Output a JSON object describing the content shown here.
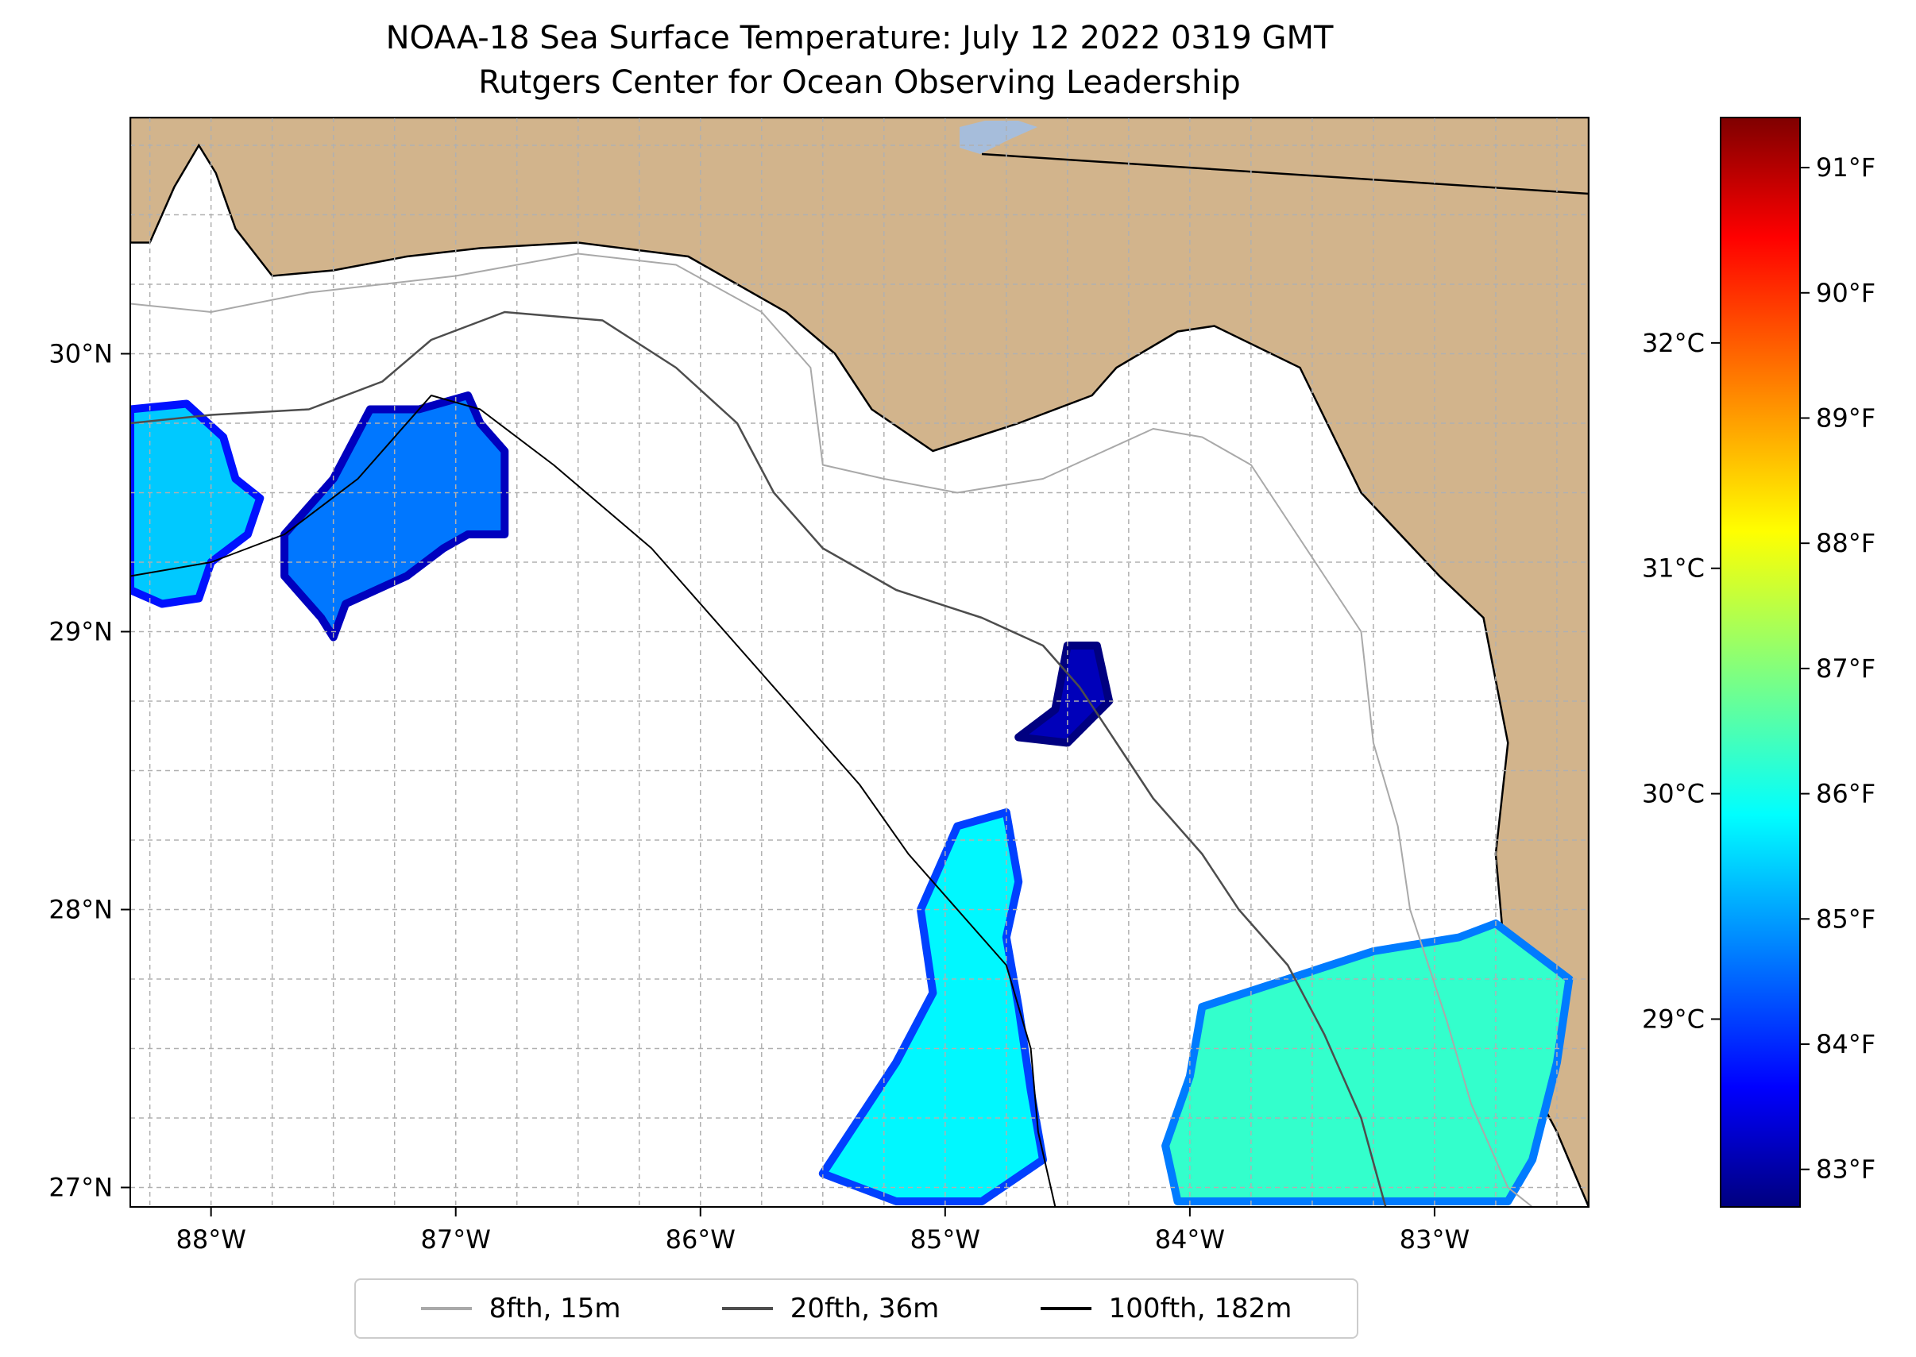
{
  "title_line1": "NOAA-18 Sea Surface Temperature: July 12 2022 0319 GMT",
  "title_line2": "Rutgers Center for Ocean Observing Leadership",
  "colors": {
    "land": "#d2b48c",
    "ocean": "#ffffff",
    "lake": "#a6bddb",
    "coastline": "#000000",
    "grid": "#b0b0b0",
    "isobath_8": "#a9a9a9",
    "isobath_20": "#4d4d4d",
    "isobath_100": "#000000"
  },
  "map": {
    "lon_range": [
      -88.33,
      -82.37
    ],
    "lat_range": [
      26.93,
      30.85
    ],
    "lon_ticks": [
      {
        "value": -88,
        "label": "88°W"
      },
      {
        "value": -87,
        "label": "87°W"
      },
      {
        "value": -86,
        "label": "86°W"
      },
      {
        "value": -85,
        "label": "85°W"
      },
      {
        "value": -84,
        "label": "84°W"
      },
      {
        "value": -83,
        "label": "83°W"
      }
    ],
    "lat_ticks": [
      {
        "value": 27,
        "label": "27°N"
      },
      {
        "value": 28,
        "label": "28°N"
      },
      {
        "value": 29,
        "label": "29°N"
      },
      {
        "value": 30,
        "label": "30°N"
      }
    ],
    "grid_step_deg": 0.25
  },
  "colorbar": {
    "colormap": "jet",
    "value_range_f": [
      82.7,
      91.4
    ],
    "ticks_f": [
      {
        "value": 83,
        "label": "83°F"
      },
      {
        "value": 84,
        "label": "84°F"
      },
      {
        "value": 85,
        "label": "85°F"
      },
      {
        "value": 86,
        "label": "86°F"
      },
      {
        "value": 87,
        "label": "87°F"
      },
      {
        "value": 88,
        "label": "88°F"
      },
      {
        "value": 89,
        "label": "89°F"
      },
      {
        "value": 90,
        "label": "90°F"
      },
      {
        "value": 91,
        "label": "91°F"
      }
    ],
    "ticks_c": [
      {
        "value": 29,
        "label": "29°C"
      },
      {
        "value": 30,
        "label": "30°C"
      },
      {
        "value": 31,
        "label": "31°C"
      },
      {
        "value": 32,
        "label": "32°C"
      }
    ]
  },
  "legend": [
    {
      "label": "8fth, 15m",
      "color": "#a9a9a9"
    },
    {
      "label": "20fth, 36m",
      "color": "#4d4d4d"
    },
    {
      "label": "100fth, 182m",
      "color": "#000000"
    }
  ],
  "sst_patches": [
    {
      "name": "sst-patch-west",
      "lonlat": [
        [
          -88.33,
          29.8
        ],
        [
          -88.1,
          29.82
        ],
        [
          -87.95,
          29.7
        ],
        [
          -87.9,
          29.55
        ],
        [
          -87.8,
          29.48
        ],
        [
          -87.85,
          29.35
        ],
        [
          -88.0,
          29.25
        ],
        [
          -88.05,
          29.12
        ],
        [
          -88.2,
          29.1
        ],
        [
          -88.33,
          29.15
        ]
      ],
      "temp_f": 85.5
    },
    {
      "name": "sst-patch-central-west",
      "lonlat": [
        [
          -87.35,
          29.8
        ],
        [
          -87.15,
          29.8
        ],
        [
          -86.95,
          29.85
        ],
        [
          -86.9,
          29.75
        ],
        [
          -86.8,
          29.65
        ],
        [
          -86.8,
          29.35
        ],
        [
          -86.95,
          29.35
        ],
        [
          -87.05,
          29.3
        ],
        [
          -87.2,
          29.2
        ],
        [
          -87.45,
          29.1
        ],
        [
          -87.5,
          28.98
        ],
        [
          -87.55,
          29.05
        ],
        [
          -87.7,
          29.2
        ],
        [
          -87.7,
          29.35
        ],
        [
          -87.5,
          29.55
        ]
      ],
      "temp_f": 84.8
    },
    {
      "name": "sst-patch-big-bend",
      "lonlat": [
        [
          -84.5,
          28.95
        ],
        [
          -84.38,
          28.95
        ],
        [
          -84.33,
          28.75
        ],
        [
          -84.5,
          28.6
        ],
        [
          -84.7,
          28.62
        ],
        [
          -84.55,
          28.72
        ]
      ],
      "temp_f": 83.2
    },
    {
      "name": "sst-patch-south-central",
      "lonlat": [
        [
          -84.95,
          28.3
        ],
        [
          -84.75,
          28.35
        ],
        [
          -84.7,
          28.1
        ],
        [
          -84.75,
          27.9
        ],
        [
          -84.7,
          27.65
        ],
        [
          -84.65,
          27.35
        ],
        [
          -84.6,
          27.1
        ],
        [
          -84.85,
          26.95
        ],
        [
          -85.2,
          26.95
        ],
        [
          -85.5,
          27.05
        ],
        [
          -85.35,
          27.25
        ],
        [
          -85.2,
          27.45
        ],
        [
          -85.05,
          27.7
        ],
        [
          -85.1,
          28.0
        ]
      ],
      "temp_f": 85.9
    },
    {
      "name": "sst-patch-southeast",
      "lonlat": [
        [
          -83.95,
          27.65
        ],
        [
          -83.6,
          27.75
        ],
        [
          -83.25,
          27.85
        ],
        [
          -82.9,
          27.9
        ],
        [
          -82.75,
          27.95
        ],
        [
          -82.45,
          27.75
        ],
        [
          -82.5,
          27.45
        ],
        [
          -82.6,
          27.1
        ],
        [
          -82.7,
          26.95
        ],
        [
          -83.2,
          26.95
        ],
        [
          -83.7,
          26.95
        ],
        [
          -84.05,
          26.95
        ],
        [
          -84.1,
          27.15
        ],
        [
          -84.0,
          27.4
        ]
      ],
      "temp_f": 86.4
    }
  ],
  "land_polygon": [
    [
      -88.33,
      30.85
    ],
    [
      -82.37,
      30.85
    ],
    [
      -82.37,
      26.93
    ],
    [
      -82.5,
      27.2
    ],
    [
      -82.65,
      27.45
    ],
    [
      -82.72,
      27.9
    ],
    [
      -82.75,
      28.2
    ],
    [
      -82.7,
      28.6
    ],
    [
      -82.8,
      29.05
    ],
    [
      -82.98,
      29.2
    ],
    [
      -83.3,
      29.5
    ],
    [
      -83.55,
      29.95
    ],
    [
      -83.9,
      30.1
    ],
    [
      -84.05,
      30.08
    ],
    [
      -84.3,
      29.95
    ],
    [
      -84.4,
      29.85
    ],
    [
      -84.7,
      29.75
    ],
    [
      -85.05,
      29.65
    ],
    [
      -85.3,
      29.8
    ],
    [
      -85.45,
      30.0
    ],
    [
      -85.65,
      30.15
    ],
    [
      -86.05,
      30.35
    ],
    [
      -86.5,
      30.4
    ],
    [
      -86.9,
      30.38
    ],
    [
      -87.2,
      30.35
    ],
    [
      -87.5,
      30.3
    ],
    [
      -87.75,
      30.28
    ],
    [
      -87.9,
      30.45
    ],
    [
      -87.98,
      30.65
    ],
    [
      -88.05,
      30.75
    ],
    [
      -88.15,
      30.6
    ],
    [
      -88.25,
      30.4
    ],
    [
      -88.33,
      30.4
    ]
  ],
  "isobaths": [
    {
      "level": "8fth",
      "color": "#a9a9a9",
      "width": 2,
      "lonlat": [
        [
          -88.33,
          30.18
        ],
        [
          -88.0,
          30.15
        ],
        [
          -87.6,
          30.22
        ],
        [
          -87.0,
          30.28
        ],
        [
          -86.5,
          30.36
        ],
        [
          -86.1,
          30.32
        ],
        [
          -85.75,
          30.15
        ],
        [
          -85.55,
          29.95
        ],
        [
          -85.5,
          29.6
        ],
        [
          -85.25,
          29.55
        ],
        [
          -84.95,
          29.5
        ],
        [
          -84.6,
          29.55
        ],
        [
          -84.35,
          29.65
        ],
        [
          -84.15,
          29.73
        ],
        [
          -83.95,
          29.7
        ],
        [
          -83.75,
          29.6
        ],
        [
          -83.6,
          29.4
        ],
        [
          -83.45,
          29.2
        ],
        [
          -83.3,
          29.0
        ],
        [
          -83.25,
          28.6
        ],
        [
          -83.15,
          28.3
        ],
        [
          -83.1,
          28.0
        ],
        [
          -82.95,
          27.6
        ],
        [
          -82.85,
          27.3
        ],
        [
          -82.7,
          27.0
        ],
        [
          -82.6,
          26.93
        ]
      ]
    },
    {
      "level": "20fth",
      "color": "#4d4d4d",
      "width": 2.5,
      "lonlat": [
        [
          -88.33,
          29.75
        ],
        [
          -88.0,
          29.78
        ],
        [
          -87.6,
          29.8
        ],
        [
          -87.3,
          29.9
        ],
        [
          -87.1,
          30.05
        ],
        [
          -86.8,
          30.15
        ],
        [
          -86.4,
          30.12
        ],
        [
          -86.1,
          29.95
        ],
        [
          -85.85,
          29.75
        ],
        [
          -85.7,
          29.5
        ],
        [
          -85.5,
          29.3
        ],
        [
          -85.2,
          29.15
        ],
        [
          -84.85,
          29.05
        ],
        [
          -84.6,
          28.95
        ],
        [
          -84.45,
          28.8
        ],
        [
          -84.3,
          28.6
        ],
        [
          -84.15,
          28.4
        ],
        [
          -83.95,
          28.2
        ],
        [
          -83.8,
          28.0
        ],
        [
          -83.6,
          27.8
        ],
        [
          -83.45,
          27.55
        ],
        [
          -83.3,
          27.25
        ],
        [
          -83.2,
          26.93
        ]
      ]
    },
    {
      "level": "100fth",
      "color": "#000000",
      "width": 2,
      "lonlat": [
        [
          -88.33,
          29.2
        ],
        [
          -88.0,
          29.25
        ],
        [
          -87.7,
          29.35
        ],
        [
          -87.4,
          29.55
        ],
        [
          -87.1,
          29.85
        ],
        [
          -86.9,
          29.8
        ],
        [
          -86.6,
          29.6
        ],
        [
          -86.2,
          29.3
        ],
        [
          -85.9,
          29.0
        ],
        [
          -85.6,
          28.7
        ],
        [
          -85.35,
          28.45
        ],
        [
          -85.15,
          28.2
        ],
        [
          -84.95,
          28.0
        ],
        [
          -84.75,
          27.8
        ],
        [
          -84.65,
          27.5
        ],
        [
          -84.62,
          27.2
        ],
        [
          -84.55,
          26.93
        ]
      ]
    }
  ]
}
